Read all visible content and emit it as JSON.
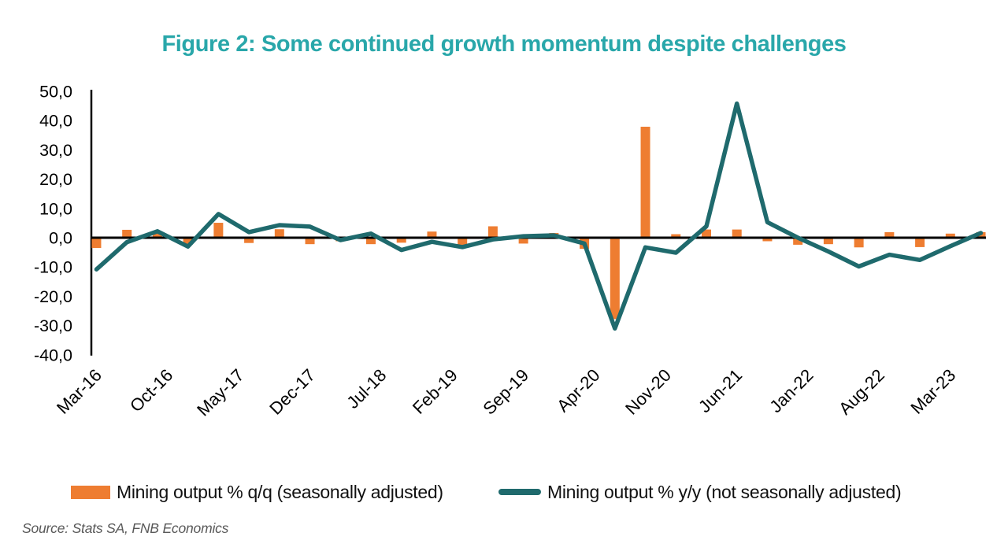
{
  "title": {
    "text": "Figure 2: Some continued growth momentum despite challenges",
    "color": "#29A7AA"
  },
  "source_note": "Source: Stats SA, FNB Economics",
  "legend": {
    "items": [
      {
        "label": "Mining output % q/q (seasonally adjusted)",
        "swatch": "bar",
        "color": "#EE7D31"
      },
      {
        "label": "Mining output % y/y (not seasonally adjusted)",
        "swatch": "line",
        "color": "#1F6A6D"
      }
    ]
  },
  "chart_data": {
    "type": "bar+line",
    "background": "#FFFFFF",
    "axis_color": "#000000",
    "x_axis": {
      "unit": "month",
      "start": "Mar-16",
      "end": "Jun-23",
      "months_total": 88,
      "tick_labels": [
        "Mar-16",
        "Oct-16",
        "May-17",
        "Dec-17",
        "Jul-18",
        "Feb-19",
        "Sep-19",
        "Apr-20",
        "Nov-20",
        "Jun-21",
        "Jan-22",
        "Aug-22",
        "Mar-23"
      ],
      "tick_month_indices": [
        0,
        7,
        14,
        21,
        28,
        35,
        42,
        49,
        56,
        63,
        70,
        77,
        84
      ],
      "label_rotation_deg": -45
    },
    "y_axis": {
      "min": -40,
      "max": 50,
      "step": 10,
      "tick_labels": [
        "50,0",
        "40,0",
        "30,0",
        "20,0",
        "10,0",
        "0,0",
        "-10,0",
        "-20,0",
        "-30,0",
        "-40,0"
      ],
      "grid": false
    },
    "quarters": [
      "Mar-16",
      "Jun-16",
      "Sep-16",
      "Dec-16",
      "Mar-17",
      "Jun-17",
      "Sep-17",
      "Dec-17",
      "Mar-18",
      "Jun-18",
      "Sep-18",
      "Dec-18",
      "Mar-19",
      "Jun-19",
      "Sep-19",
      "Dec-19",
      "Mar-20",
      "Jun-20",
      "Sep-20",
      "Dec-20",
      "Mar-21",
      "Jun-21",
      "Sep-21",
      "Dec-21",
      "Mar-22",
      "Jun-22",
      "Sep-22",
      "Dec-22",
      "Mar-23",
      "Jun-23"
    ],
    "quarter_month_indices": [
      0,
      3,
      6,
      9,
      12,
      15,
      18,
      21,
      24,
      27,
      30,
      33,
      36,
      39,
      42,
      45,
      48,
      51,
      54,
      57,
      60,
      63,
      66,
      69,
      72,
      75,
      78,
      81,
      84,
      87
    ],
    "series": [
      {
        "name": "Mining output % q/q (seasonally adjusted)",
        "type": "bar",
        "color": "#EE7D31",
        "values": [
          -3.5,
          2.7,
          1.5,
          -2.4,
          5.1,
          -1.8,
          2.9,
          -2.2,
          -1.2,
          -2.2,
          -1.7,
          2.1,
          -3.0,
          3.9,
          -2.0,
          1.6,
          -3.8,
          -27.8,
          37.9,
          1.2,
          2.8,
          2.8,
          -1.2,
          -2.4,
          -2.2,
          -3.3,
          1.9,
          -3.2,
          1.4,
          1.9
        ]
      },
      {
        "name": "Mining output % y/y (not seasonally adjusted)",
        "type": "line",
        "color": "#1F6A6D",
        "values": [
          -10.8,
          -1.5,
          2.2,
          -3.0,
          8.1,
          1.9,
          4.3,
          3.8,
          -0.8,
          1.4,
          -4.2,
          -1.4,
          -3.2,
          -0.6,
          0.5,
          0.8,
          -2.0,
          -31.0,
          -3.3,
          -5.1,
          3.9,
          45.8,
          5.3,
          0.0,
          -4.7,
          -9.8,
          -5.8,
          -7.6,
          -2.9,
          1.6
        ]
      }
    ]
  }
}
